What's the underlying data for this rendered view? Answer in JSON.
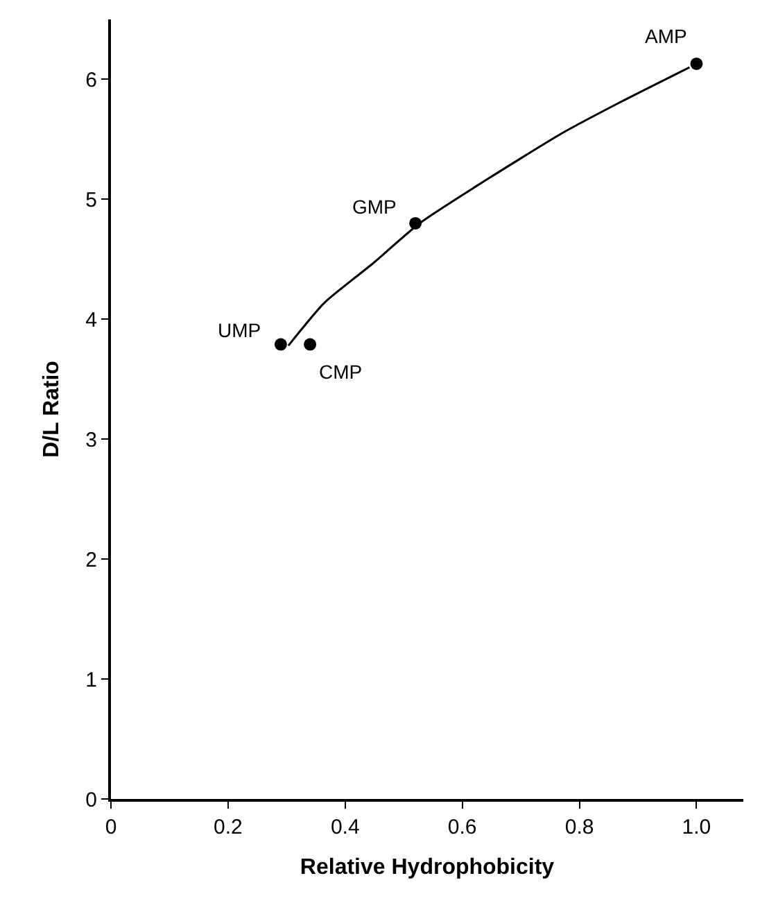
{
  "chart_data": {
    "type": "scatter",
    "xlabel": "Relative Hydrophobicity",
    "ylabel": "D/L Ratio",
    "xlim": [
      0,
      1.08
    ],
    "ylim": [
      0,
      6.5
    ],
    "xticks": [
      0,
      0.2,
      0.4,
      0.6,
      0.8,
      {
        "value": 1,
        "label": "1.0"
      }
    ],
    "yticks": [
      0,
      1,
      2,
      3,
      4,
      5,
      6
    ],
    "series": [
      {
        "color": "#000000",
        "marker": "circle",
        "x": [
          0.29,
          0.34,
          0.52,
          1.0
        ],
        "values": [
          3.79,
          3.79,
          4.8,
          6.13
        ]
      },
      {
        "type": "line",
        "color": "#000000",
        "line_style": "solid",
        "marker": "none",
        "x": [
          0.303,
          0.365,
          0.446,
          0.527,
          0.624,
          0.77,
          0.866,
          0.988
        ],
        "values": [
          3.78,
          4.14,
          4.46,
          4.8,
          5.11,
          5.55,
          5.8,
          6.1
        ]
      }
    ],
    "annotations": [
      {
        "text": "UMP",
        "x": 0.29,
        "y": 3.79
      },
      {
        "text": "CMP",
        "x": 0.34,
        "y": 3.79
      },
      {
        "text": "GMP",
        "x": 0.52,
        "y": 4.8
      },
      {
        "text": "AMP",
        "x": 1.0,
        "y": 6.13
      }
    ]
  }
}
